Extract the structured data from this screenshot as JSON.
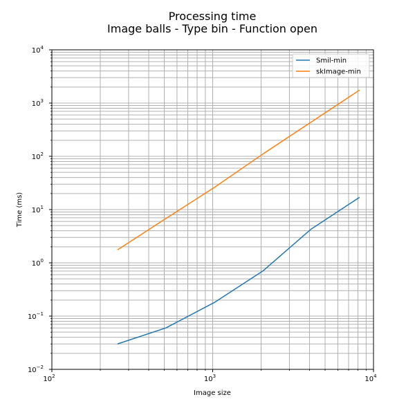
{
  "chart_data": {
    "type": "line",
    "title": "Processing time",
    "subtitle": "Image balls - Type bin - Function open",
    "xlabel": "Image size",
    "ylabel": "Time (ms)",
    "xscale": "log",
    "yscale": "log",
    "xlim": [
      100,
      10000
    ],
    "ylim": [
      0.01,
      10000
    ],
    "x_ticks": [
      {
        "base": "10",
        "exp": "2"
      },
      {
        "base": "10",
        "exp": "3"
      },
      {
        "base": "10",
        "exp": "4"
      }
    ],
    "y_ticks": [
      {
        "base": "10",
        "exp": "−2"
      },
      {
        "base": "10",
        "exp": "−1"
      },
      {
        "base": "10",
        "exp": "0"
      },
      {
        "base": "10",
        "exp": "1"
      },
      {
        "base": "10",
        "exp": "2"
      },
      {
        "base": "10",
        "exp": "3"
      },
      {
        "base": "10",
        "exp": "4"
      }
    ],
    "grid": "major and minor",
    "legend_position": "top-right",
    "x": [
      256,
      512,
      1024,
      2048,
      4096,
      8192
    ],
    "series": [
      {
        "name": "Smil-min",
        "color": "#1f77b4",
        "values": [
          0.03,
          0.06,
          0.18,
          0.7,
          4.3,
          17
        ]
      },
      {
        "name": "skImage-min",
        "color": "#ff7f0e",
        "values": [
          1.75,
          6.8,
          26,
          110,
          440,
          1750
        ]
      }
    ]
  }
}
